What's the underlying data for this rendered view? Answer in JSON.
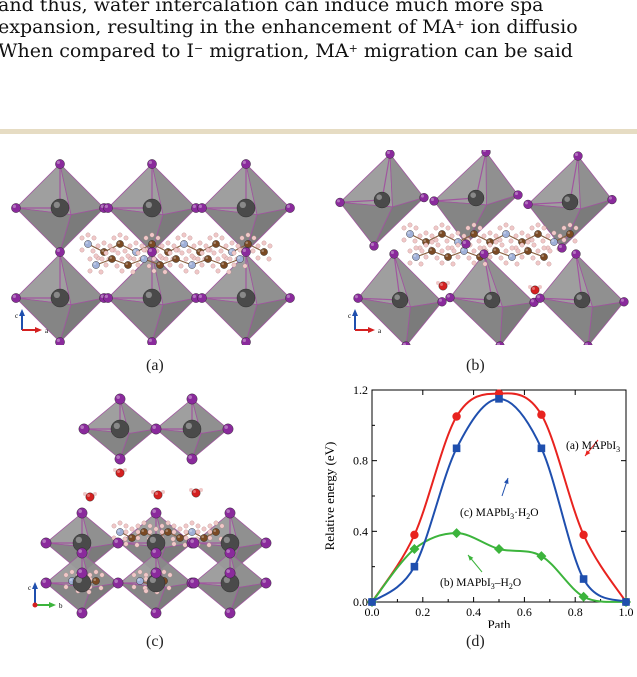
{
  "paper": {
    "lines": [
      {
        "segments": [
          "and thus, water intercalation can induce much more spa"
        ]
      },
      {
        "segments": [
          "expansion, resulting in the enhancement of MA",
          "+",
          " ion diffusio"
        ]
      },
      {
        "segments": [
          "When compared to I",
          "−",
          " migration, MA",
          "+",
          " migration can be said"
        ]
      }
    ]
  },
  "figure": {
    "panels": [
      {
        "caption": "(a)",
        "axes": {
          "vertical": "c",
          "horizontal": "a"
        }
      },
      {
        "caption": "(b)",
        "axes": {
          "vertical": "c",
          "horizontal": "a"
        }
      },
      {
        "caption": "(c)",
        "axes": {
          "vertical": "c",
          "horizontal": "b"
        }
      },
      {
        "caption": "(d)"
      }
    ]
  },
  "colors": {
    "rule": "#e6dcc3",
    "octahedron": "#8c8c8c",
    "iodine": "#8a2a9c",
    "lead": "#4a4a4a",
    "carbon": "#7a4a24",
    "nitrogen": "#9fb0d8",
    "hydrogen": "#f0c8c8",
    "oxygen": "#d42020",
    "series_a": "#e8231f",
    "series_b": "#3cb43c",
    "series_c": "#1f4fae"
  },
  "chart_data": {
    "type": "line",
    "xlabel": "Path",
    "ylabel": "Relative energy (eV)",
    "xlim": [
      0.0,
      1.0
    ],
    "ylim": [
      0.0,
      1.2
    ],
    "xticks": [
      "0.0",
      "0.2",
      "0.4",
      "0.6",
      "0.8",
      "1.0"
    ],
    "yticks": [
      "0.0",
      "0.4",
      "0.8",
      "1.2"
    ],
    "series": [
      {
        "name": "(a) MAPbI3",
        "label_parts": [
          "(a) MAPbI",
          "3",
          ""
        ],
        "color": "#e8231f",
        "marker": "circle",
        "x": [
          0.0,
          0.167,
          0.333,
          0.5,
          0.667,
          0.833,
          1.0
        ],
        "y": [
          0.0,
          0.38,
          1.05,
          1.18,
          1.06,
          0.38,
          0.0
        ]
      },
      {
        "name": "(b) MAPbI3–H2O",
        "label_parts": [
          "(b) MAPbI",
          "3",
          "–H",
          "2",
          "O"
        ],
        "color": "#3cb43c",
        "marker": "diamond",
        "x": [
          0.0,
          0.167,
          0.333,
          0.5,
          0.667,
          0.833,
          1.0
        ],
        "y": [
          0.0,
          0.3,
          0.39,
          0.3,
          0.26,
          0.03,
          0.0
        ]
      },
      {
        "name": "(c) MAPbI3·H2O",
        "label_parts": [
          "(c) MAPbI",
          "3",
          "·H",
          "2",
          "O"
        ],
        "color": "#1f4fae",
        "marker": "square",
        "x": [
          0.0,
          0.167,
          0.333,
          0.5,
          0.667,
          0.833,
          1.0
        ],
        "y": [
          0.0,
          0.2,
          0.87,
          1.15,
          0.87,
          0.13,
          0.0
        ]
      }
    ]
  }
}
